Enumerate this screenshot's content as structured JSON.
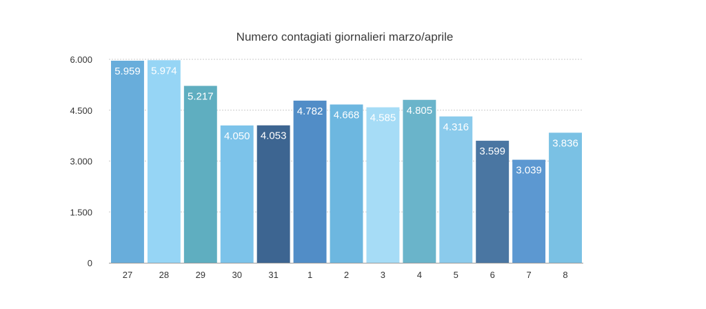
{
  "chart_data": {
    "type": "bar",
    "title": "Numero contagiati giornalieri marzo/aprile",
    "xlabel": "",
    "ylabel": "",
    "categories": [
      "27",
      "28",
      "29",
      "30",
      "31",
      "1",
      "2",
      "3",
      "4",
      "5",
      "6",
      "7",
      "8"
    ],
    "values": [
      5959,
      5974,
      5217,
      4050,
      4053,
      4782,
      4668,
      4585,
      4805,
      4316,
      3599,
      3039,
      3836
    ],
    "value_labels": [
      "5.959",
      "5.974",
      "5.217",
      "4.050",
      "4.053",
      "4.782",
      "4.668",
      "4.585",
      "4.805",
      "4.316",
      "3.599",
      "3.039",
      "3.836"
    ],
    "ylim": [
      0,
      6000
    ],
    "yticks": [
      0,
      1500,
      3000,
      4500,
      6000
    ],
    "ytick_labels": [
      "0",
      "1.500",
      "3.000",
      "4.500",
      "6.000"
    ],
    "grid": true,
    "legend": "none",
    "colors": [
      "#68addb",
      "#96d5f5",
      "#5faec0",
      "#7cc3ea",
      "#3d6591",
      "#518dc7",
      "#6db7e0",
      "#a6dcf6",
      "#6ab4ca",
      "#8bcbec",
      "#4a76a2",
      "#5c98d1",
      "#7ac1e4"
    ]
  }
}
